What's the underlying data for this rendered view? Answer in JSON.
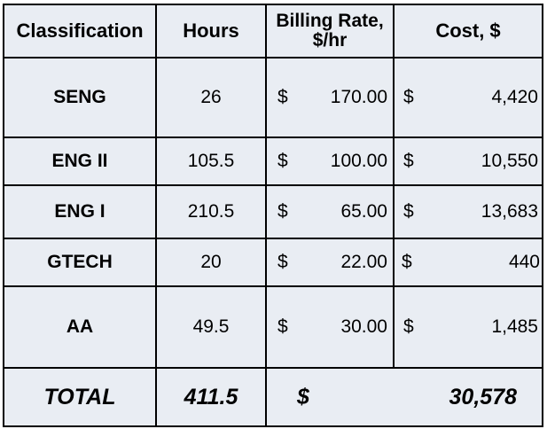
{
  "table": {
    "headers": {
      "classification": "Classification",
      "hours": "Hours",
      "rate_line1": "Billing Rate,",
      "rate_line2": "$/hr",
      "cost": "Cost, $"
    },
    "rows": [
      {
        "classification": "SENG",
        "hours": "26",
        "rate_symbol": "$",
        "rate": "170.00",
        "cost_symbol": "$",
        "cost": "4,420"
      },
      {
        "classification": "ENG II",
        "hours": "105.5",
        "rate_symbol": "$",
        "rate": "100.00",
        "cost_symbol": "$",
        "cost": "10,550"
      },
      {
        "classification": "ENG I",
        "hours": "210.5",
        "rate_symbol": "$",
        "rate": "65.00",
        "cost_symbol": "$",
        "cost": "13,683"
      },
      {
        "classification": "GTECH",
        "hours": "20",
        "rate_symbol": "$",
        "rate": "22.00",
        "cost_symbol": "$",
        "cost": "440"
      },
      {
        "classification": "AA",
        "hours": "49.5",
        "rate_symbol": "$",
        "rate": "30.00",
        "cost_symbol": "$",
        "cost": "1,485"
      }
    ],
    "total": {
      "label": "TOTAL",
      "hours": "411.5",
      "cost_symbol": "$",
      "cost": "30,578"
    },
    "colors": {
      "background": "#e9edf3",
      "border": "#000000"
    }
  }
}
